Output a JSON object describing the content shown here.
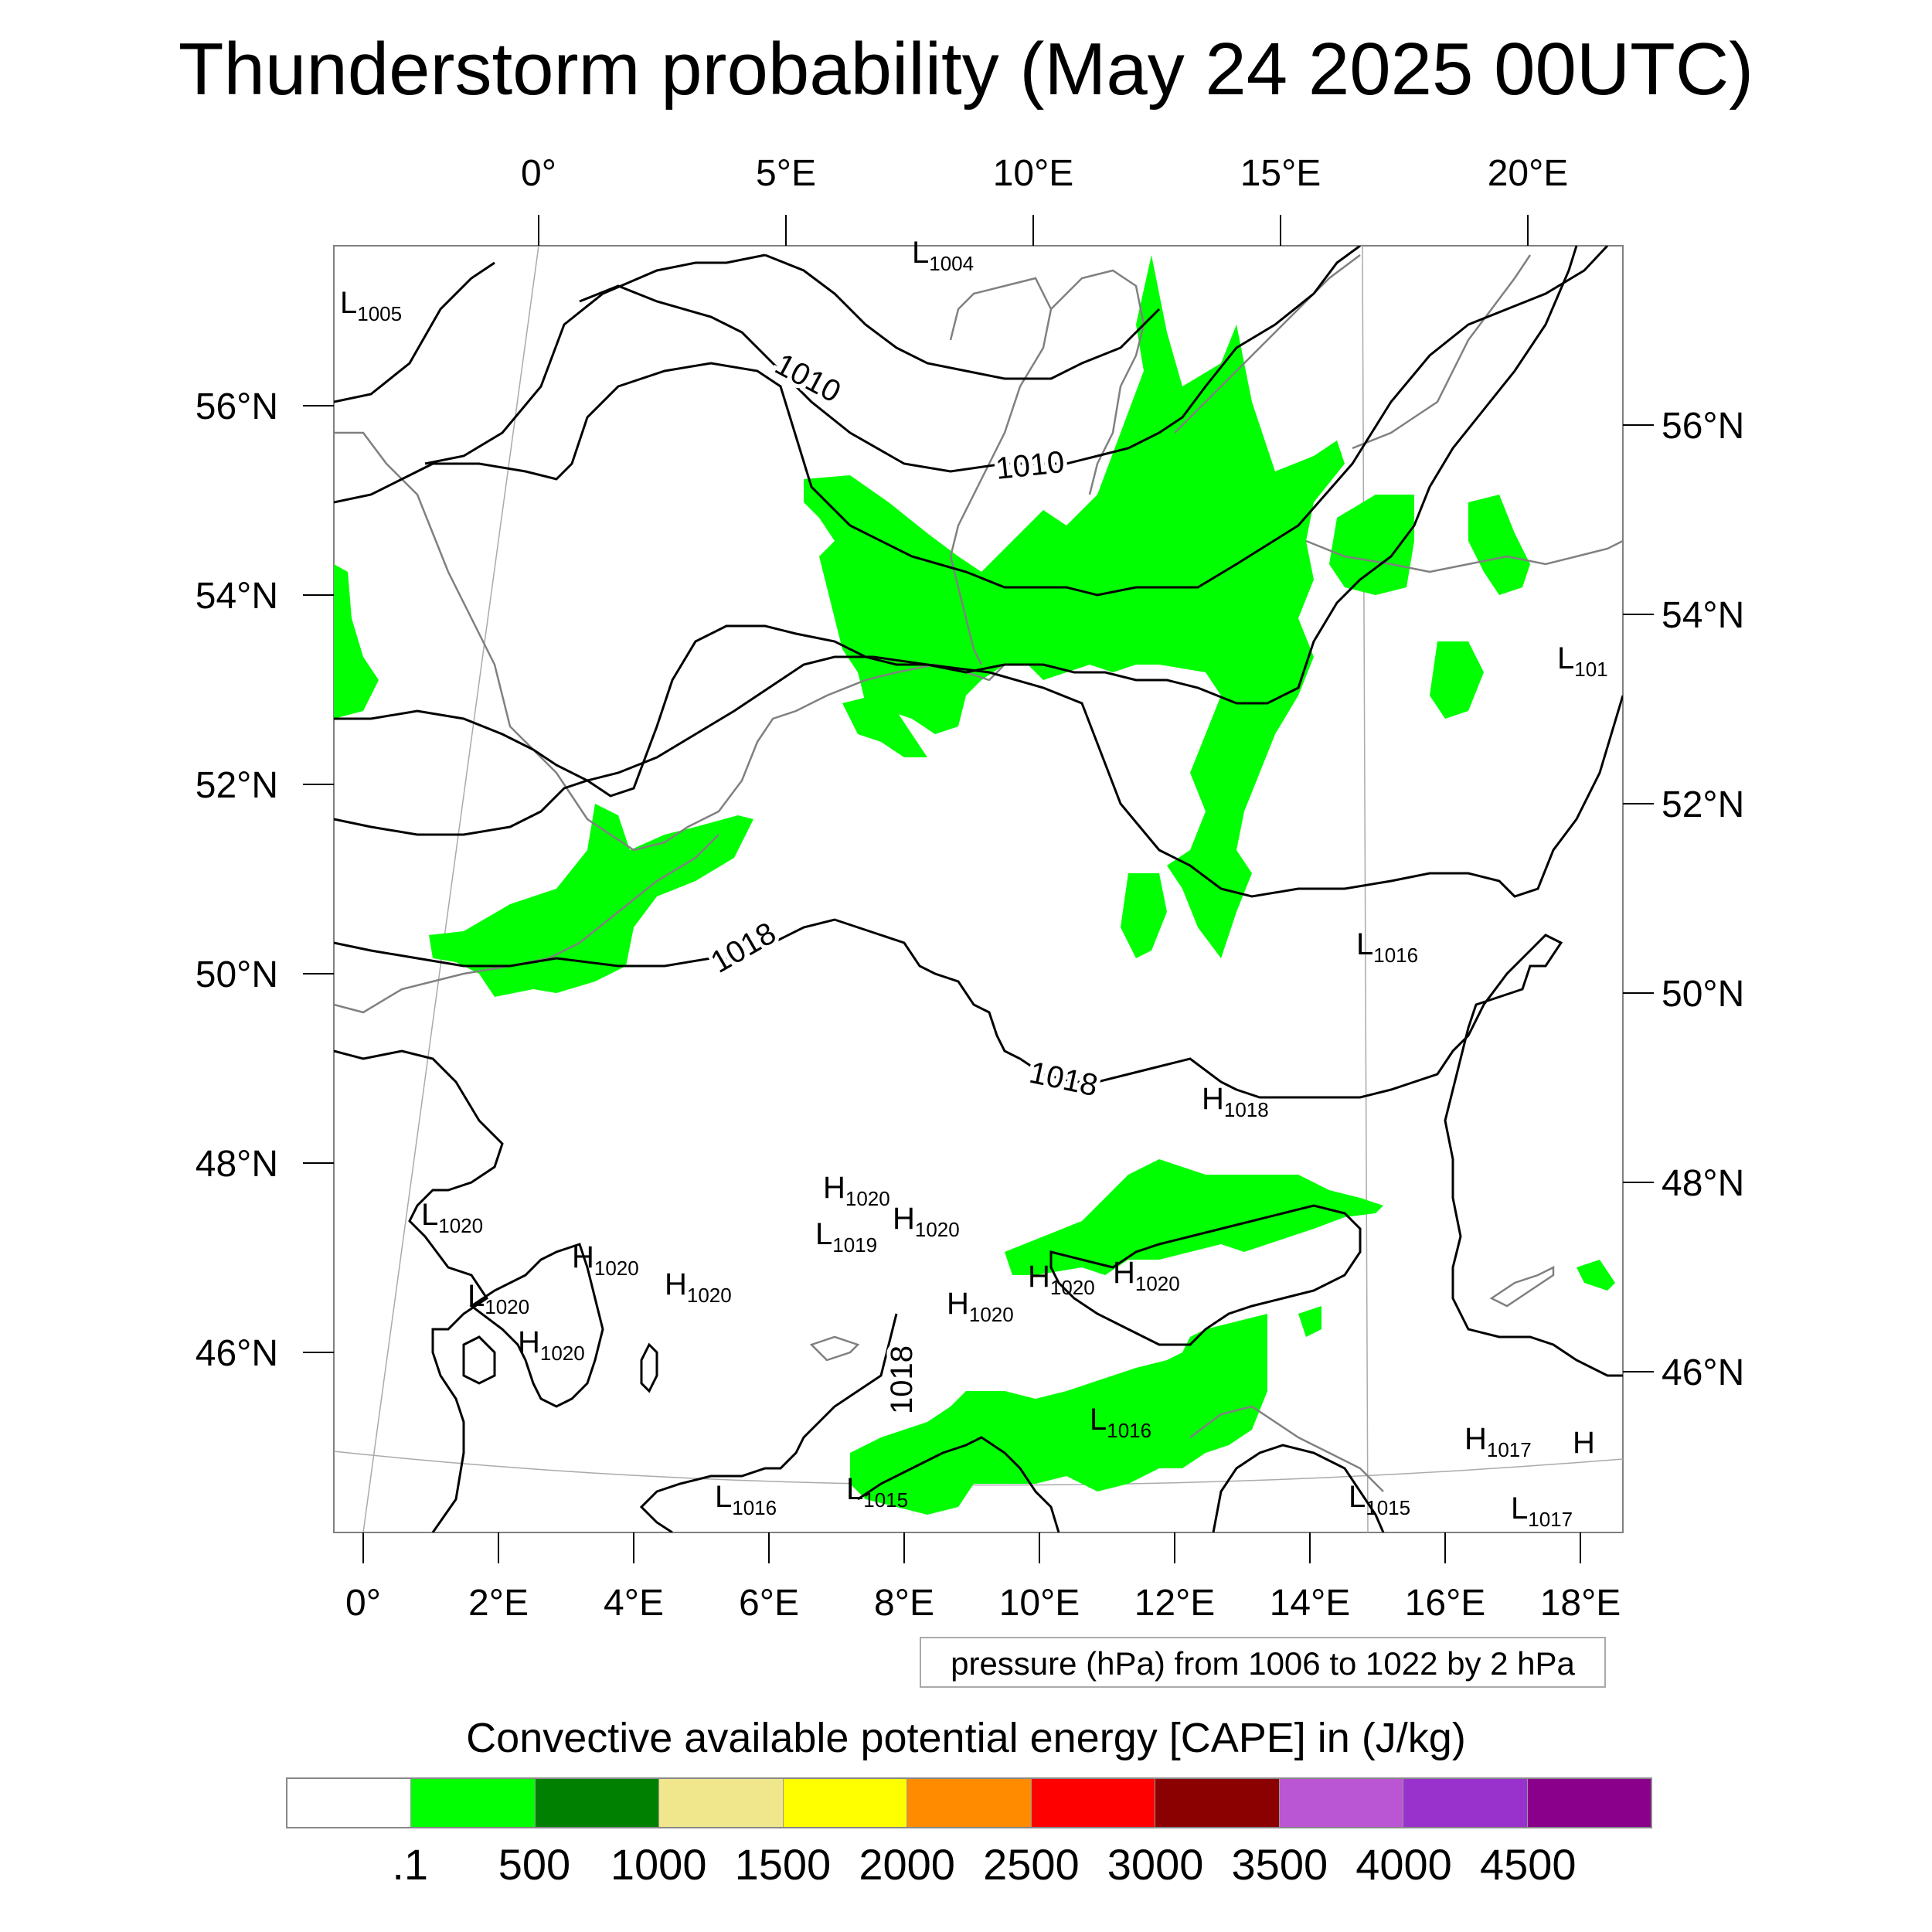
{
  "title": "Thunderstorm probability (May 24 2025 00UTC)",
  "map": {
    "top_lon_labels": [
      "0°",
      "5°E",
      "10°E",
      "15°E",
      "20°E"
    ],
    "bottom_lon_labels": [
      "0°",
      "2°E",
      "4°E",
      "6°E",
      "8°E",
      "10°E",
      "12°E",
      "14°E",
      "16°E",
      "18°E"
    ],
    "left_lat_labels": [
      "56°N",
      "54°N",
      "52°N",
      "50°N",
      "48°N",
      "46°N"
    ],
    "right_lat_labels": [
      "56°N",
      "54°N",
      "52°N",
      "50°N",
      "48°N",
      "46°N"
    ],
    "isobar_labels": [
      "1010",
      "1010",
      "1018",
      "1018",
      "1018"
    ],
    "pressure_centers": [
      {
        "letter": "L",
        "value": "1004"
      },
      {
        "letter": "L",
        "value": "1005"
      },
      {
        "letter": "L",
        "value": "101"
      },
      {
        "letter": "L",
        "value": "1016"
      },
      {
        "letter": "H",
        "value": "1018"
      },
      {
        "letter": "H",
        "value": "1020"
      },
      {
        "letter": "L",
        "value": "1019"
      },
      {
        "letter": "H",
        "value": "1020"
      },
      {
        "letter": "L",
        "value": "1020"
      },
      {
        "letter": "H",
        "value": "1020"
      },
      {
        "letter": "H",
        "value": "1020"
      },
      {
        "letter": "L",
        "value": "1020"
      },
      {
        "letter": "H",
        "value": "1020"
      },
      {
        "letter": "H",
        "value": "1020"
      },
      {
        "letter": "H",
        "value": "1020"
      },
      {
        "letter": "H",
        "value": "1020"
      },
      {
        "letter": "L",
        "value": "1016"
      },
      {
        "letter": "L",
        "value": "1016"
      },
      {
        "letter": "L",
        "value": "1015"
      },
      {
        "letter": "L",
        "value": "1015"
      },
      {
        "letter": "H",
        "value": "1017"
      },
      {
        "letter": "H",
        "value": ""
      },
      {
        "letter": "L",
        "value": "1017"
      }
    ],
    "colors": {
      "cape_fill": "#00ff00",
      "isobar": "#000000",
      "coastline": "#808080"
    }
  },
  "legend_text": "pressure (hPa) from 1006 to 1022 by 2 hPa",
  "colorbar": {
    "title": "Convective available potential energy [CAPE] in (J/kg)",
    "colors": [
      "#ffffff",
      "#00ff00",
      "#008000",
      "#f0e68c",
      "#ffff00",
      "#ff8c00",
      "#ff0000",
      "#8b0000",
      "#ba55d3",
      "#9932cc",
      "#8b008b"
    ],
    "labels": [
      ".1",
      "500",
      "1000",
      "1500",
      "2000",
      "2500",
      "3000",
      "3500",
      "4000",
      "4500"
    ]
  }
}
